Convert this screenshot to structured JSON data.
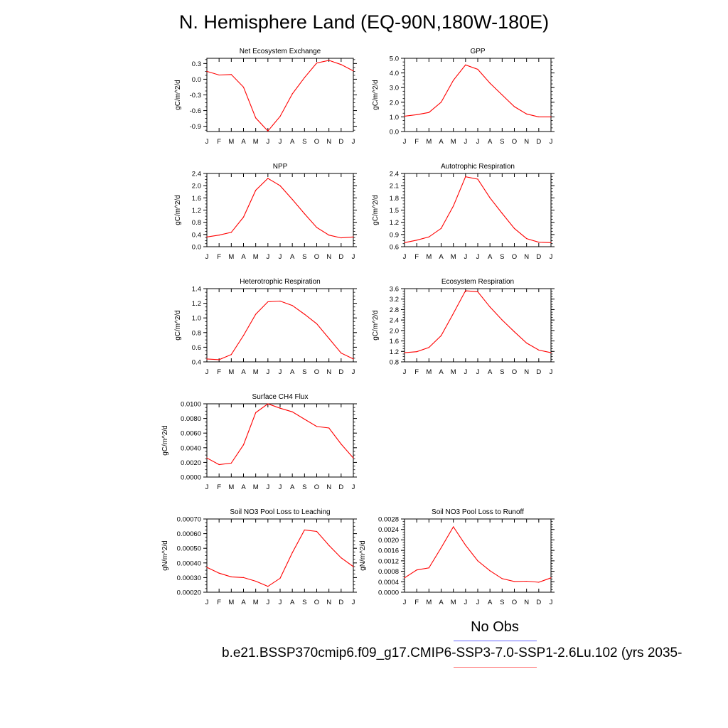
{
  "title": "N. Hemisphere Land (EQ-90N,180W-180E)",
  "legend": {
    "obs_label": "No Obs",
    "case_label": "b.e21.BSSP370cmip6.f09_g17.CMIP6-SSP3-7.0-SSP1-2.6Lu.102 (yrs 2035-",
    "obs_color": "#0000ff",
    "case_color": "#ff0000"
  },
  "line_color": "#ff0000",
  "chart_data": [
    {
      "type": "line",
      "title": "Net Ecosystem Exchange",
      "ylabel": "gC/m^2/d",
      "categories": [
        "J",
        "F",
        "M",
        "A",
        "M",
        "J",
        "J",
        "A",
        "S",
        "O",
        "N",
        "D",
        "J"
      ],
      "ylim": [
        -1.0,
        0.4
      ],
      "yticks": [
        "0.3",
        "0.0",
        "-0.3",
        "-0.6",
        "-0.9"
      ],
      "ytick_values": [
        0.3,
        0.0,
        -0.3,
        -0.6,
        -0.9
      ],
      "values": [
        0.15,
        0.08,
        0.09,
        -0.15,
        -0.74,
        -0.99,
        -0.71,
        -0.28,
        0.03,
        0.31,
        0.36,
        0.28,
        0.16
      ]
    },
    {
      "type": "line",
      "title": "GPP",
      "ylabel": "gC/m^2/d",
      "categories": [
        "J",
        "F",
        "M",
        "A",
        "M",
        "J",
        "J",
        "A",
        "S",
        "O",
        "N",
        "D",
        "J"
      ],
      "ylim": [
        0.0,
        5.0
      ],
      "yticks": [
        "5.0",
        "4.0",
        "3.0",
        "2.0",
        "1.0",
        "0.0"
      ],
      "ytick_values": [
        5,
        4,
        3,
        2,
        1,
        0
      ],
      "values": [
        1.05,
        1.15,
        1.3,
        2.0,
        3.5,
        4.55,
        4.25,
        3.3,
        2.5,
        1.7,
        1.2,
        1.0,
        1.0
      ]
    },
    {
      "type": "line",
      "title": "NPP",
      "ylabel": "gC/m^2/d",
      "categories": [
        "J",
        "F",
        "M",
        "A",
        "M",
        "J",
        "J",
        "A",
        "S",
        "O",
        "N",
        "D",
        "J"
      ],
      "ylim": [
        0.0,
        2.4
      ],
      "yticks": [
        "2.4",
        "2.0",
        "1.6",
        "1.2",
        "0.8",
        "0.4",
        "0.0"
      ],
      "ytick_values": [
        2.4,
        2.0,
        1.6,
        1.2,
        0.8,
        0.4,
        0.0
      ],
      "values": [
        0.32,
        0.38,
        0.47,
        0.97,
        1.85,
        2.24,
        2.0,
        1.55,
        1.08,
        0.63,
        0.38,
        0.29,
        0.32
      ]
    },
    {
      "type": "line",
      "title": "Autotrophic Respiration",
      "ylabel": "gC/m^2/d",
      "categories": [
        "J",
        "F",
        "M",
        "A",
        "M",
        "J",
        "J",
        "A",
        "S",
        "O",
        "N",
        "D",
        "J"
      ],
      "ylim": [
        0.6,
        2.4
      ],
      "yticks": [
        "2.4",
        "2.1",
        "1.8",
        "1.5",
        "1.2",
        "0.9",
        "0.6"
      ],
      "ytick_values": [
        2.4,
        2.1,
        1.8,
        1.5,
        1.2,
        0.9,
        0.6
      ],
      "values": [
        0.7,
        0.76,
        0.84,
        1.05,
        1.6,
        2.32,
        2.26,
        1.8,
        1.42,
        1.05,
        0.8,
        0.71,
        0.7
      ]
    },
    {
      "type": "line",
      "title": "Heterotrophic Respiration",
      "ylabel": "gC/m^2/d",
      "categories": [
        "J",
        "F",
        "M",
        "A",
        "M",
        "J",
        "J",
        "A",
        "S",
        "O",
        "N",
        "D",
        "J"
      ],
      "ylim": [
        0.4,
        1.4
      ],
      "yticks": [
        "1.4",
        "1.2",
        "1.0",
        "0.8",
        "0.6",
        "0.4"
      ],
      "ytick_values": [
        1.4,
        1.2,
        1.0,
        0.8,
        0.6,
        0.4
      ],
      "values": [
        0.44,
        0.43,
        0.5,
        0.76,
        1.05,
        1.22,
        1.23,
        1.17,
        1.05,
        0.92,
        0.72,
        0.52,
        0.44
      ]
    },
    {
      "type": "line",
      "title": "Ecosystem Respiration",
      "ylabel": "gC/m^2/d",
      "categories": [
        "J",
        "F",
        "M",
        "A",
        "M",
        "J",
        "J",
        "A",
        "S",
        "O",
        "N",
        "D",
        "J"
      ],
      "ylim": [
        0.8,
        3.6
      ],
      "yticks": [
        "3.6",
        "3.2",
        "2.8",
        "2.4",
        "2.0",
        "1.6",
        "1.2",
        "0.8"
      ],
      "ytick_values": [
        3.6,
        3.2,
        2.8,
        2.4,
        2.0,
        1.6,
        1.2,
        0.8
      ],
      "values": [
        1.15,
        1.19,
        1.35,
        1.8,
        2.65,
        3.52,
        3.48,
        2.9,
        2.4,
        1.95,
        1.52,
        1.25,
        1.15
      ]
    },
    {
      "type": "line",
      "title": "Surface CH4 Flux",
      "ylabel": "gC/m^2/d",
      "categories": [
        "J",
        "F",
        "M",
        "A",
        "M",
        "J",
        "J",
        "A",
        "S",
        "O",
        "N",
        "D",
        "J"
      ],
      "ylim": [
        0.0,
        0.01
      ],
      "yticks": [
        "0.0100",
        "0.0080",
        "0.0060",
        "0.0040",
        "0.0020",
        "0.0000"
      ],
      "ytick_values": [
        0.01,
        0.008,
        0.006,
        0.004,
        0.002,
        0.0
      ],
      "values": [
        0.0026,
        0.0017,
        0.0019,
        0.0044,
        0.0088,
        0.01,
        0.0094,
        0.0089,
        0.0079,
        0.0069,
        0.0067,
        0.0045,
        0.0026
      ]
    },
    {
      "type": "line",
      "title": "Soil NO3 Pool Loss to Leaching",
      "ylabel": "gN/m^2/d",
      "categories": [
        "J",
        "F",
        "M",
        "A",
        "M",
        "J",
        "J",
        "A",
        "S",
        "O",
        "N",
        "D",
        "J"
      ],
      "ylim": [
        0.0002,
        0.0007
      ],
      "yticks": [
        "0.00070",
        "0.00060",
        "0.00050",
        "0.00040",
        "0.00030",
        "0.00020"
      ],
      "ytick_values": [
        0.0007,
        0.0006,
        0.0005,
        0.0004,
        0.0003,
        0.0002
      ],
      "values": [
        0.00037,
        0.00033,
        0.000305,
        0.0003,
        0.000275,
        0.00024,
        0.000295,
        0.00047,
        0.000625,
        0.000615,
        0.00052,
        0.000435,
        0.000375
      ]
    },
    {
      "type": "line",
      "title": "Soil NO3 Pool Loss to Runoff",
      "ylabel": "gN/m^2/d",
      "categories": [
        "J",
        "F",
        "M",
        "A",
        "M",
        "J",
        "J",
        "A",
        "S",
        "O",
        "N",
        "D",
        "J"
      ],
      "ylim": [
        0.0,
        0.0028
      ],
      "yticks": [
        "0.0028",
        "0.0024",
        "0.0020",
        "0.0016",
        "0.0012",
        "0.0008",
        "0.0004",
        "0.0000"
      ],
      "ytick_values": [
        0.0028,
        0.0024,
        0.002,
        0.0016,
        0.0012,
        0.0008,
        0.0004,
        0.0
      ],
      "values": [
        0.00055,
        0.00085,
        0.00093,
        0.0017,
        0.0025,
        0.0018,
        0.0012,
        0.00082,
        0.00052,
        0.00041,
        0.00042,
        0.00038,
        0.00055
      ]
    }
  ]
}
